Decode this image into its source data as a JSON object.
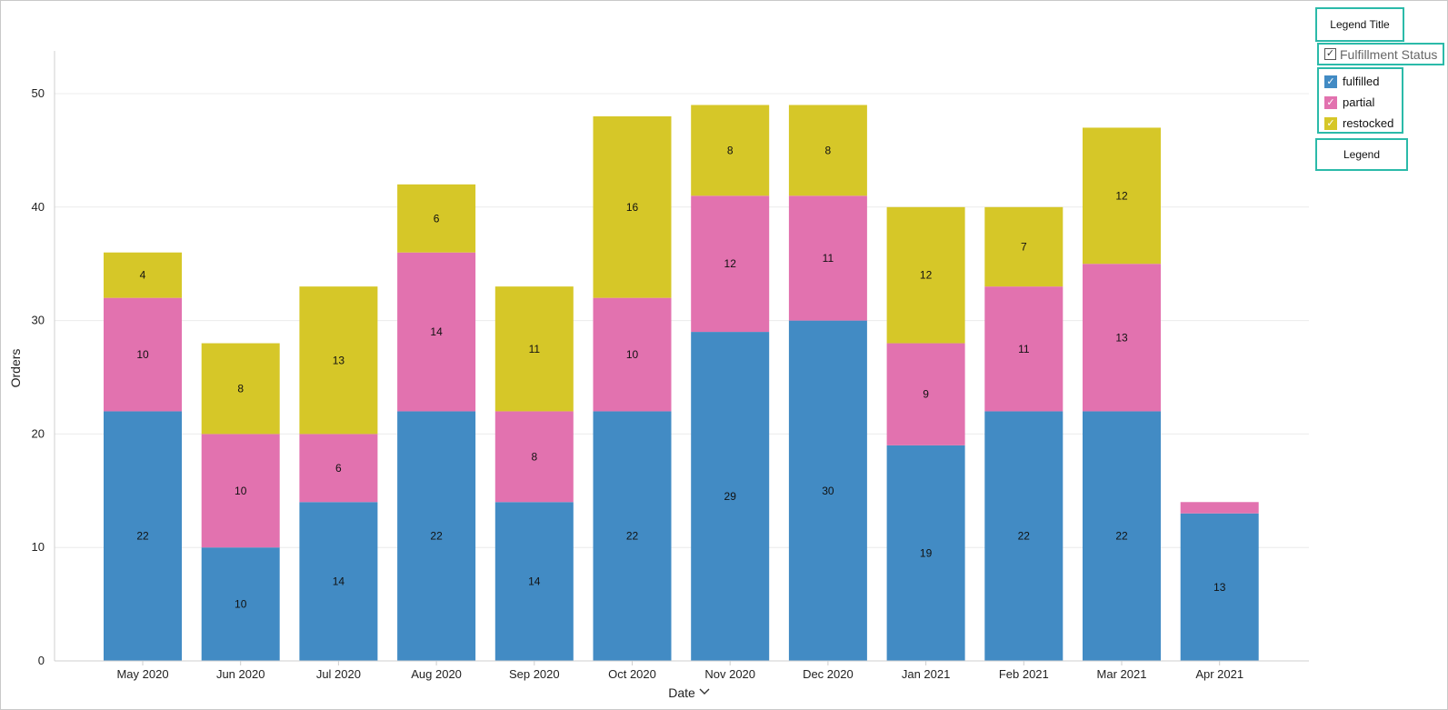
{
  "chart_data": {
    "type": "bar",
    "stacked": true,
    "categories": [
      "May 2020",
      "Jun 2020",
      "Jul 2020",
      "Aug 2020",
      "Sep 2020",
      "Oct 2020",
      "Nov 2020",
      "Dec 2020",
      "Jan 2021",
      "Feb 2021",
      "Mar 2021",
      "Apr 2021"
    ],
    "series": [
      {
        "name": "fulfilled",
        "color": "#428bc4",
        "values": [
          22,
          10,
          14,
          22,
          14,
          22,
          29,
          30,
          19,
          22,
          22,
          13
        ],
        "labels": [
          "22",
          "10",
          "14",
          "22",
          "14",
          "22",
          "29",
          "30",
          "19",
          "22",
          "22",
          "13"
        ]
      },
      {
        "name": "partial",
        "color": "#e272af",
        "values": [
          10,
          10,
          6,
          14,
          8,
          10,
          12,
          11,
          9,
          11,
          13,
          1
        ],
        "labels": [
          "10",
          "10",
          "6",
          "14",
          "8",
          "10",
          "12",
          "11",
          "9",
          "11",
          "13",
          ""
        ]
      },
      {
        "name": "restocked",
        "color": "#d6c728",
        "values": [
          4,
          8,
          13,
          6,
          11,
          16,
          8,
          8,
          12,
          7,
          12,
          0
        ],
        "labels": [
          "4",
          "8",
          "13",
          "6",
          "11",
          "16",
          "8",
          "8",
          "12",
          "7",
          "12",
          ""
        ]
      }
    ],
    "xlabel": "Date",
    "ylabel": "Orders",
    "ylim": [
      0,
      54
    ],
    "yticks": [
      "0",
      "10",
      "20",
      "30",
      "40",
      "50"
    ],
    "grid": true,
    "legend_position": "top-right"
  },
  "legend": {
    "title": "Legend Title",
    "group_label": "Fulfillment Status",
    "group_check": "✓",
    "item_check": "✓",
    "footer": "Legend"
  },
  "axis": {
    "x_dropdown_icon": "chevron-down-icon"
  }
}
